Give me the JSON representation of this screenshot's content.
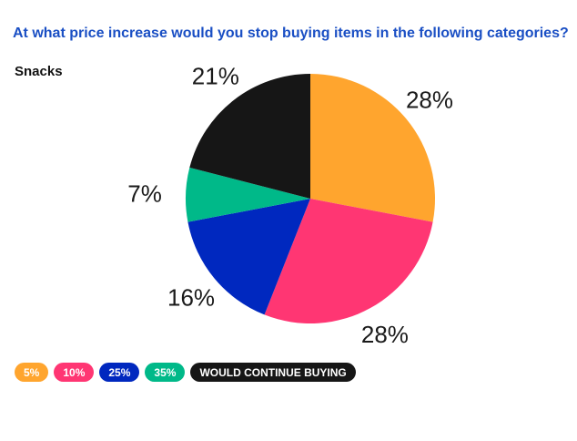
{
  "title": "At what price increase would you stop buying items in the following categories?",
  "subtitle": "Snacks",
  "chart_data": {
    "type": "pie",
    "title": "At what price increase would you stop buying items in the following categories?",
    "subtitle": "Snacks",
    "series": [
      {
        "name": "5%",
        "value": 28,
        "label": "28%",
        "color": "#ffa52e"
      },
      {
        "name": "10%",
        "value": 28,
        "label": "28%",
        "color": "#ff3673"
      },
      {
        "name": "25%",
        "value": 16,
        "label": "16%",
        "color": "#0028bf"
      },
      {
        "name": "35%",
        "value": 7,
        "label": "7%",
        "color": "#00b989"
      },
      {
        "name": "WOULD CONTINUE BUYING",
        "value": 21,
        "label": "21%",
        "color": "#161616"
      }
    ],
    "legend_placement": "bottom-left"
  }
}
